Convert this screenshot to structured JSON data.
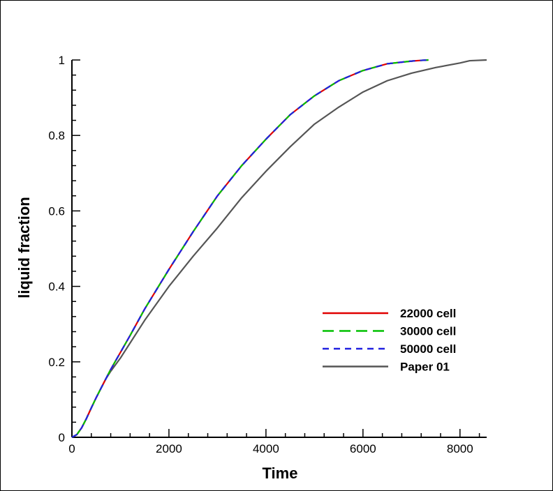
{
  "chart_data": {
    "type": "line",
    "xlabel": "Time",
    "ylabel": "liquid fraction",
    "xlim": [
      0,
      8550
    ],
    "ylim": [
      0,
      1
    ],
    "x_ticks": [
      0,
      2000,
      4000,
      6000,
      8000
    ],
    "x_tick_labels": [
      "0",
      "2000",
      "4000",
      "6000",
      "8000"
    ],
    "y_ticks": [
      0,
      0.2,
      0.4,
      0.6,
      0.8,
      1
    ],
    "y_tick_labels": [
      "0",
      "0.2",
      "0.4",
      "0.6",
      "0.8",
      "1"
    ],
    "grid": false,
    "legend_position": "bottom-right",
    "series": [
      {
        "name": "22000 cell",
        "color": "#e00000",
        "dash": "solid",
        "x": [
          0,
          100,
          200,
          300,
          400,
          500,
          600,
          700,
          800,
          1000,
          1200,
          1500,
          2000,
          2500,
          3000,
          3500,
          4000,
          4500,
          5000,
          5500,
          6000,
          6500,
          7000,
          7200,
          7350
        ],
        "y": [
          0,
          0.007,
          0.025,
          0.05,
          0.078,
          0.105,
          0.13,
          0.155,
          0.18,
          0.225,
          0.27,
          0.34,
          0.445,
          0.545,
          0.64,
          0.72,
          0.79,
          0.855,
          0.905,
          0.945,
          0.972,
          0.99,
          0.997,
          0.999,
          1.0
        ]
      },
      {
        "name": "30000 cell",
        "color": "#00c000",
        "dash": "long-dash",
        "x": [
          0,
          100,
          200,
          300,
          400,
          500,
          600,
          700,
          800,
          1000,
          1200,
          1500,
          2000,
          2500,
          3000,
          3500,
          4000,
          4500,
          5000,
          5500,
          6000,
          6500,
          7000,
          7200,
          7350
        ],
        "y": [
          0,
          0.007,
          0.025,
          0.05,
          0.078,
          0.105,
          0.13,
          0.155,
          0.18,
          0.225,
          0.27,
          0.34,
          0.445,
          0.545,
          0.64,
          0.72,
          0.79,
          0.855,
          0.905,
          0.945,
          0.972,
          0.99,
          0.997,
          0.999,
          1.0
        ]
      },
      {
        "name": "50000 cell",
        "color": "#2020e0",
        "dash": "short-dash",
        "x": [
          0,
          100,
          200,
          300,
          400,
          500,
          600,
          700,
          800,
          1000,
          1200,
          1500,
          2000,
          2500,
          3000,
          3500,
          4000,
          4500,
          5000,
          5500,
          6000,
          6500,
          7000,
          7200,
          7350
        ],
        "y": [
          0,
          0.007,
          0.025,
          0.05,
          0.078,
          0.105,
          0.13,
          0.155,
          0.18,
          0.225,
          0.27,
          0.34,
          0.445,
          0.545,
          0.64,
          0.72,
          0.79,
          0.855,
          0.905,
          0.945,
          0.972,
          0.99,
          0.997,
          0.999,
          1.0
        ]
      },
      {
        "name": "Paper 01",
        "color": "#555555",
        "dash": "solid",
        "x": [
          0,
          100,
          200,
          300,
          400,
          500,
          600,
          700,
          800,
          1000,
          1200,
          1500,
          2000,
          2500,
          3000,
          3500,
          4000,
          4500,
          5000,
          5500,
          6000,
          6500,
          7000,
          7500,
          8000,
          8200,
          8550
        ],
        "y": [
          0,
          0.007,
          0.025,
          0.05,
          0.078,
          0.105,
          0.13,
          0.155,
          0.175,
          0.21,
          0.25,
          0.31,
          0.4,
          0.48,
          0.555,
          0.635,
          0.705,
          0.77,
          0.83,
          0.875,
          0.915,
          0.945,
          0.965,
          0.98,
          0.992,
          0.998,
          1.0
        ]
      }
    ]
  }
}
